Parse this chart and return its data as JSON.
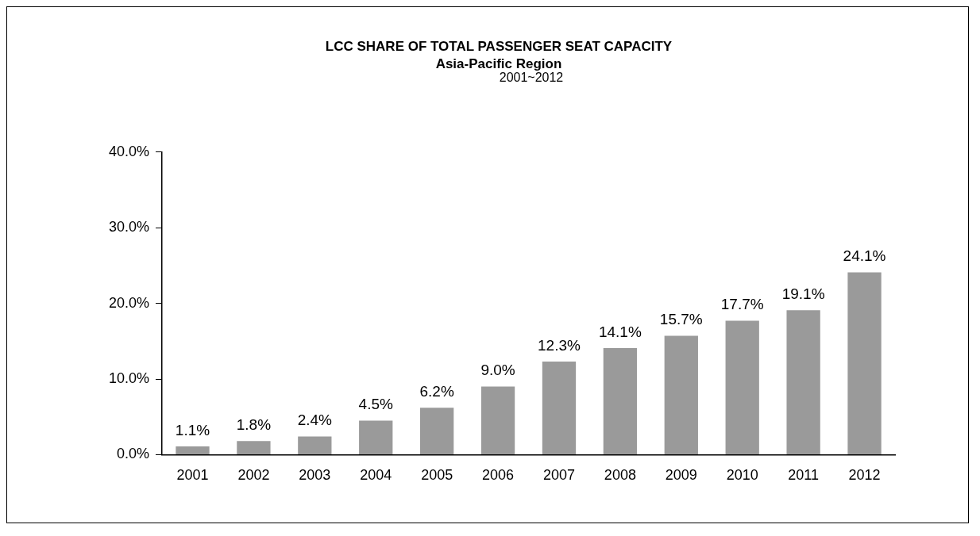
{
  "chart_data": {
    "type": "bar",
    "title": "LCC SHARE OF TOTAL PASSENGER SEAT CAPACITY",
    "subtitle": "Asia-Pacific Region",
    "annotations": [
      "2001~2012"
    ],
    "categories": [
      "2001",
      "2002",
      "2003",
      "2004",
      "2005",
      "2006",
      "2007",
      "2008",
      "2009",
      "2010",
      "2011",
      "2012"
    ],
    "values": [
      1.1,
      1.8,
      2.4,
      4.5,
      6.2,
      9.0,
      12.3,
      14.1,
      15.7,
      17.7,
      19.1,
      24.1
    ],
    "value_labels": [
      "1.1%",
      "1.8%",
      "2.4%",
      "4.5%",
      "6.2%",
      "9.0%",
      "12.3%",
      "14.1%",
      "15.7%",
      "17.7%",
      "19.1%",
      "24.1%"
    ],
    "color": "#9a9a9a",
    "ylim": [
      0,
      40
    ],
    "yticks": [
      {
        "value": 0,
        "label": "0.0%"
      },
      {
        "value": 10,
        "label": "10.0%"
      },
      {
        "value": 20,
        "label": "20.0%"
      },
      {
        "value": 30,
        "label": "30.0%"
      },
      {
        "value": 40,
        "label": "40.0%"
      }
    ],
    "grid": false,
    "legend": false
  }
}
